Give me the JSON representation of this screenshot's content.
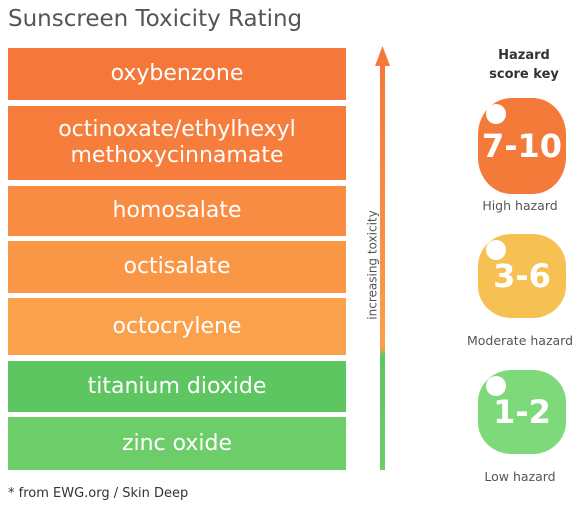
{
  "header": {
    "title": "Sunscreen Toxicity Rating"
  },
  "ingredients": [
    {
      "label": "oxybenzone"
    },
    {
      "label": "octinoxate/ethylhexyl methoxycinnamate"
    },
    {
      "label": "homosalate"
    },
    {
      "label": "octisalate"
    },
    {
      "label": "octocrylene"
    },
    {
      "label": "titanium dioxide"
    },
    {
      "label": "zinc oxide"
    }
  ],
  "arrow": {
    "label": "increasing toxicity"
  },
  "key": {
    "title": "Hazard score key",
    "items": [
      {
        "score": "7-10",
        "label": "High hazard"
      },
      {
        "score": "3-6",
        "label": "Moderate hazard"
      },
      {
        "score": "1-2",
        "label": "Low hazard"
      }
    ]
  },
  "footnote": "* from EWG.org / Skin Deep"
}
